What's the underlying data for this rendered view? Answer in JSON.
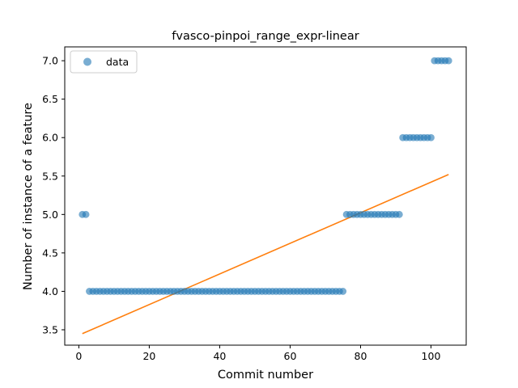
{
  "chart_data": {
    "type": "scatter",
    "title": "fvasco-pinpoi_range_expr-linear",
    "xlabel": "Commit number",
    "ylabel": "Number of instance of a feature",
    "xlim": [
      -4,
      110
    ],
    "ylim": [
      3.3,
      7.18
    ],
    "xticks": [
      0,
      20,
      40,
      60,
      80,
      100
    ],
    "yticks": [
      3.5,
      4.0,
      4.5,
      5.0,
      5.5,
      6.0,
      6.5,
      7.0
    ],
    "xtick_labels": [
      "0",
      "20",
      "40",
      "60",
      "80",
      "100"
    ],
    "ytick_labels": [
      "3.5",
      "4.0",
      "4.5",
      "5.0",
      "5.5",
      "6.0",
      "6.5",
      "7.0"
    ],
    "legend": {
      "position": "top-left",
      "entries": [
        "data"
      ]
    },
    "colors": {
      "data": "#1f77b4",
      "fit": "#ff7f0e"
    },
    "series": [
      {
        "name": "data",
        "kind": "scatter",
        "segments": [
          {
            "x_start": 1,
            "x_end": 2,
            "y": 5.0
          },
          {
            "x_start": 3,
            "x_end": 75,
            "y": 4.0
          },
          {
            "x_start": 76,
            "x_end": 91,
            "y": 5.0
          },
          {
            "x_start": 92,
            "x_end": 100,
            "y": 6.0
          },
          {
            "x_start": 101,
            "x_end": 105,
            "y": 7.0
          }
        ]
      },
      {
        "kind": "line",
        "x": [
          1,
          105
        ],
        "y": [
          3.45,
          5.52
        ]
      }
    ]
  }
}
